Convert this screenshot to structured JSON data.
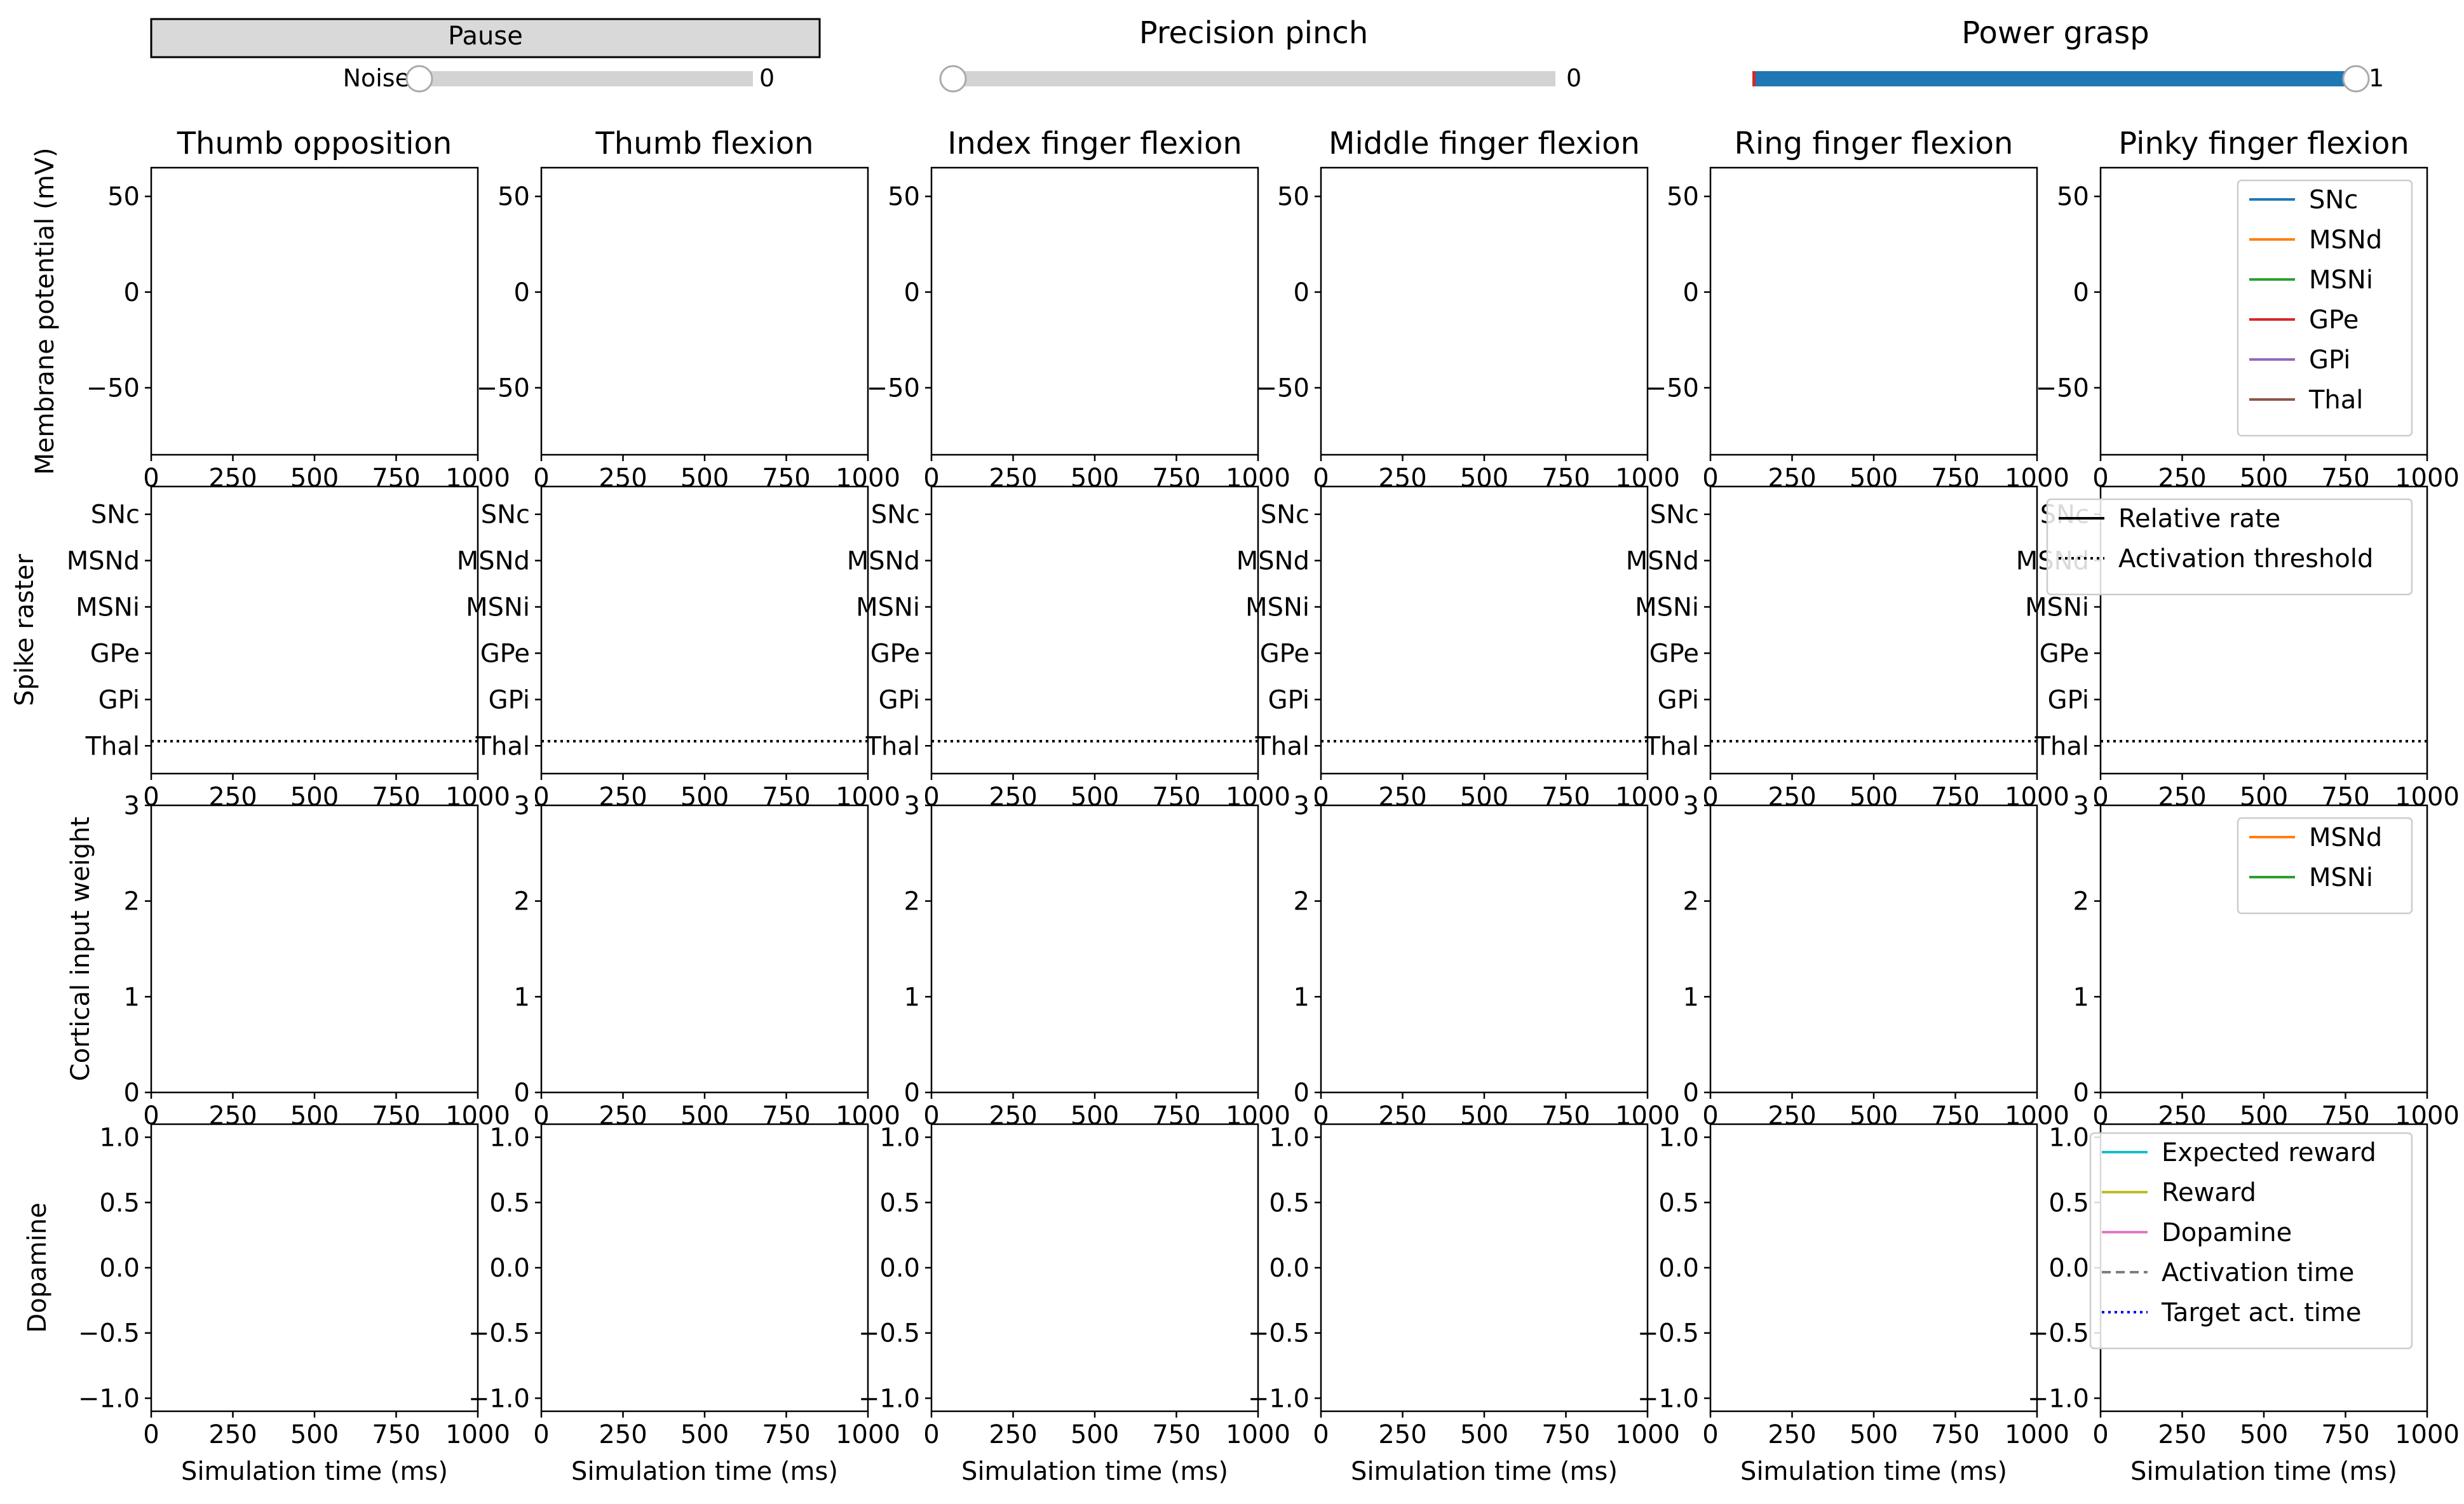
{
  "controls": {
    "pause_label": "Pause",
    "noise": {
      "label": "Noise",
      "value": 0,
      "value_text": "0",
      "min": 0,
      "max": 1
    },
    "precision": {
      "label": "Precision pinch",
      "value": 0,
      "value_text": "0",
      "min": 0,
      "max": 1
    },
    "power": {
      "label": "Power grasp",
      "value": 1,
      "value_text": "1",
      "min": 0,
      "max": 1
    }
  },
  "colors": {
    "button_bg": "#d9d9d9",
    "slider_track": "#d3d3d3",
    "slider_fill": "#1f77b4",
    "SNc": "#1f77b4",
    "MSNd": "#ff7f0e",
    "MSNi": "#2ca02c",
    "GPe": "#d62728",
    "GPi": "#9467bd",
    "Thal": "#8c564b",
    "expected_reward": "#17becf",
    "reward": "#bcbd22",
    "dopamine": "#e377c2",
    "activation_time": "#7f7f7f",
    "target_act_time": "#0000ff"
  },
  "chart_data": {
    "type": "line",
    "columns": [
      "Thumb opposition",
      "Thumb flexion",
      "Index finger flexion",
      "Middle finger flexion",
      "Ring finger flexion",
      "Pinky finger flexion"
    ],
    "x_ticks": [
      0,
      250,
      500,
      750,
      1000
    ],
    "x_tick_labels": [
      "0",
      "250",
      "500",
      "750",
      "1000"
    ],
    "xlabel": "Simulation time (ms)",
    "xlim": [
      0,
      1000
    ],
    "rows": [
      {
        "ylabel": "Membrane potential (mV)",
        "ylim": [
          -85,
          65
        ],
        "y_ticks": [
          50,
          0,
          -50
        ],
        "y_tick_labels": [
          "50",
          "0",
          "−50"
        ],
        "legend": [
          "SNc",
          "MSNd",
          "MSNi",
          "GPe",
          "GPi",
          "Thal"
        ],
        "series": []
      },
      {
        "ylabel": "Spike raster",
        "ylim": [
          -0.6,
          5.6
        ],
        "y_ticks": [
          5,
          4,
          3,
          2,
          1,
          0
        ],
        "y_tick_labels": [
          "SNc",
          "MSNd",
          "MSNi",
          "GPe",
          "GPi",
          "Thal"
        ],
        "legend": [
          "Relative rate",
          "Activation threshold"
        ],
        "activation_threshold": 0.1,
        "series": []
      },
      {
        "ylabel": "Cortical input weight",
        "ylim": [
          0,
          3
        ],
        "y_ticks": [
          3,
          2,
          1,
          0
        ],
        "y_tick_labels": [
          "3",
          "2",
          "1",
          "0"
        ],
        "legend": [
          "MSNd",
          "MSNi"
        ],
        "series": []
      },
      {
        "ylabel": "Dopamine",
        "ylim": [
          -1.1,
          1.1
        ],
        "y_ticks": [
          1.0,
          0.5,
          0.0,
          -0.5,
          -1.0
        ],
        "y_tick_labels": [
          "1.0",
          "0.5",
          "0.0",
          "−0.5",
          "−1.0"
        ],
        "legend": [
          "Expected reward",
          "Reward",
          "Dopamine",
          "Activation time",
          "Target act. time"
        ],
        "series": []
      }
    ]
  }
}
